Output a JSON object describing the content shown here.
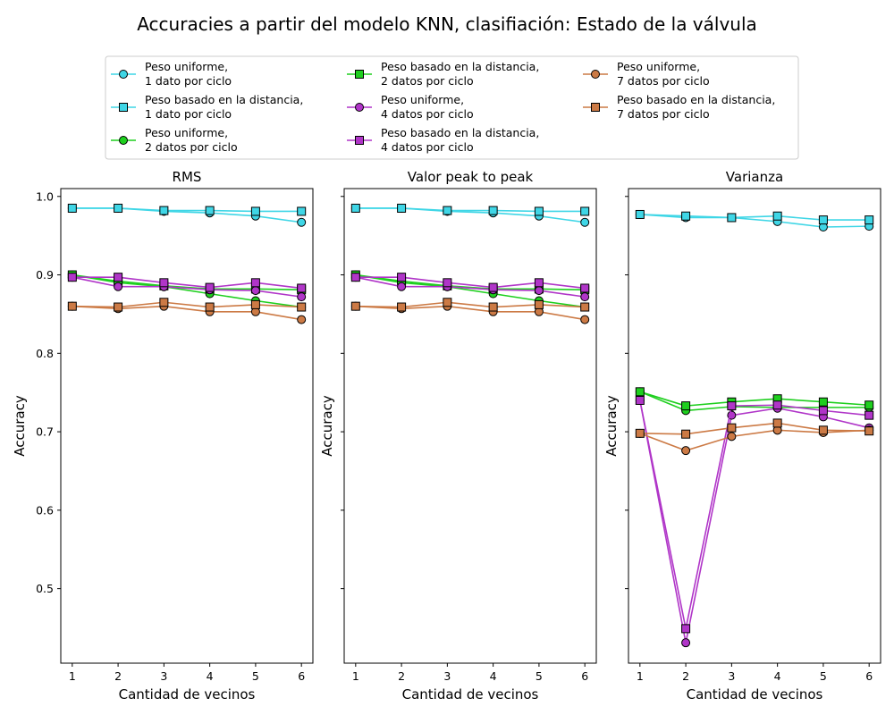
{
  "figure": {
    "title": "Accuracies a partir del modelo KNN, clasifiación: Estado de la válvula"
  },
  "legend": {
    "placement": "top-center",
    "entries": [
      {
        "key": "u1",
        "line1": "Peso uniforme,",
        "line2": "1 dato por ciclo",
        "color": "#3fd6e6",
        "marker": "circle"
      },
      {
        "key": "d1",
        "line1": "Peso basado en la distancia,",
        "line2": "1 dato por ciclo",
        "color": "#3fd6e6",
        "marker": "square"
      },
      {
        "key": "u2",
        "line1": "Peso uniforme,",
        "line2": "2 datos por ciclo",
        "color": "#1ecf1e",
        "marker": "circle"
      },
      {
        "key": "d2",
        "line1": "Peso basado en la distancia,",
        "line2": "2 datos por ciclo",
        "color": "#1ecf1e",
        "marker": "square"
      },
      {
        "key": "u4",
        "line1": "Peso uniforme,",
        "line2": "4 datos por ciclo",
        "color": "#b035c8",
        "marker": "circle"
      },
      {
        "key": "d4",
        "line1": "Peso basado en la distancia,",
        "line2": "4 datos por ciclo",
        "color": "#b035c8",
        "marker": "square"
      },
      {
        "key": "u7",
        "line1": "Peso uniforme,",
        "line2": "7 datos por ciclo",
        "color": "#cc7a45",
        "marker": "circle"
      },
      {
        "key": "d7",
        "line1": "Peso basado en la distancia,",
        "line2": "7 datos por ciclo",
        "color": "#cc7a45",
        "marker": "square"
      }
    ]
  },
  "chart_data": [
    {
      "type": "line",
      "title": "RMS",
      "xlabel": "Cantidad de vecinos",
      "ylabel": "Accuracy",
      "x": [
        1,
        2,
        3,
        4,
        5,
        6
      ],
      "ylim": [
        0.405,
        1.01
      ],
      "yticks": [
        0.5,
        0.6,
        0.7,
        0.8,
        0.9,
        1.0
      ],
      "ytick_labels": [
        "0.5",
        "0.6",
        "0.7",
        "0.8",
        "0.9",
        "1.0"
      ],
      "series": [
        {
          "key": "u1",
          "values": [
            0.985,
            0.985,
            0.981,
            0.979,
            0.975,
            0.967
          ]
        },
        {
          "key": "d1",
          "values": [
            0.985,
            0.985,
            0.982,
            0.982,
            0.981,
            0.981
          ]
        },
        {
          "key": "u2",
          "values": [
            0.9,
            0.89,
            0.885,
            0.876,
            0.867,
            0.859
          ]
        },
        {
          "key": "d2",
          "values": [
            0.9,
            0.892,
            0.886,
            0.882,
            0.882,
            0.881
          ]
        },
        {
          "key": "u4",
          "values": [
            0.897,
            0.885,
            0.885,
            0.881,
            0.88,
            0.872
          ]
        },
        {
          "key": "d4",
          "values": [
            0.897,
            0.897,
            0.89,
            0.884,
            0.89,
            0.883
          ]
        },
        {
          "key": "u7",
          "values": [
            0.86,
            0.857,
            0.86,
            0.853,
            0.853,
            0.843
          ]
        },
        {
          "key": "d7",
          "values": [
            0.86,
            0.859,
            0.865,
            0.859,
            0.862,
            0.859
          ]
        }
      ]
    },
    {
      "type": "line",
      "title": "Valor peak to peak",
      "xlabel": "Cantidad de vecinos",
      "ylabel": "Accuracy",
      "x": [
        1,
        2,
        3,
        4,
        5,
        6
      ],
      "ylim": [
        0.405,
        1.01
      ],
      "yticks": [
        0.5,
        0.6,
        0.7,
        0.8,
        0.9,
        1.0
      ],
      "ytick_labels": [
        "",
        "",
        "",
        "",
        "",
        ""
      ],
      "series": [
        {
          "key": "u1",
          "values": [
            0.985,
            0.985,
            0.981,
            0.979,
            0.975,
            0.967
          ]
        },
        {
          "key": "d1",
          "values": [
            0.985,
            0.985,
            0.982,
            0.982,
            0.981,
            0.981
          ]
        },
        {
          "key": "u2",
          "values": [
            0.9,
            0.89,
            0.885,
            0.876,
            0.867,
            0.859
          ]
        },
        {
          "key": "d2",
          "values": [
            0.9,
            0.892,
            0.886,
            0.882,
            0.882,
            0.881
          ]
        },
        {
          "key": "u4",
          "values": [
            0.897,
            0.885,
            0.885,
            0.881,
            0.88,
            0.872
          ]
        },
        {
          "key": "d4",
          "values": [
            0.897,
            0.897,
            0.89,
            0.884,
            0.89,
            0.883
          ]
        },
        {
          "key": "u7",
          "values": [
            0.86,
            0.857,
            0.86,
            0.853,
            0.853,
            0.843
          ]
        },
        {
          "key": "d7",
          "values": [
            0.86,
            0.859,
            0.865,
            0.859,
            0.862,
            0.859
          ]
        }
      ]
    },
    {
      "type": "line",
      "title": "Varianza",
      "xlabel": "Cantidad de vecinos",
      "ylabel": "Accuracy",
      "x": [
        1,
        2,
        3,
        4,
        5,
        6
      ],
      "ylim": [
        0.405,
        1.01
      ],
      "yticks": [
        0.5,
        0.6,
        0.7,
        0.8,
        0.9,
        1.0
      ],
      "ytick_labels": [
        "",
        "",
        "",
        "",
        "",
        ""
      ],
      "series": [
        {
          "key": "u1",
          "values": [
            0.977,
            0.973,
            0.973,
            0.968,
            0.961,
            0.962
          ]
        },
        {
          "key": "d1",
          "values": [
            0.977,
            0.975,
            0.973,
            0.975,
            0.97,
            0.97
          ]
        },
        {
          "key": "u2",
          "values": [
            0.751,
            0.727,
            0.732,
            0.731,
            0.731,
            0.731
          ]
        },
        {
          "key": "d2",
          "values": [
            0.751,
            0.733,
            0.738,
            0.742,
            0.738,
            0.734
          ]
        },
        {
          "key": "u4",
          "values": [
            0.74,
            0.431,
            0.721,
            0.73,
            0.719,
            0.705
          ]
        },
        {
          "key": "d4",
          "values": [
            0.74,
            0.449,
            0.733,
            0.734,
            0.727,
            0.721
          ]
        },
        {
          "key": "u7",
          "values": [
            0.698,
            0.676,
            0.694,
            0.702,
            0.699,
            0.702
          ]
        },
        {
          "key": "d7",
          "values": [
            0.698,
            0.697,
            0.705,
            0.711,
            0.702,
            0.701
          ]
        }
      ]
    }
  ]
}
